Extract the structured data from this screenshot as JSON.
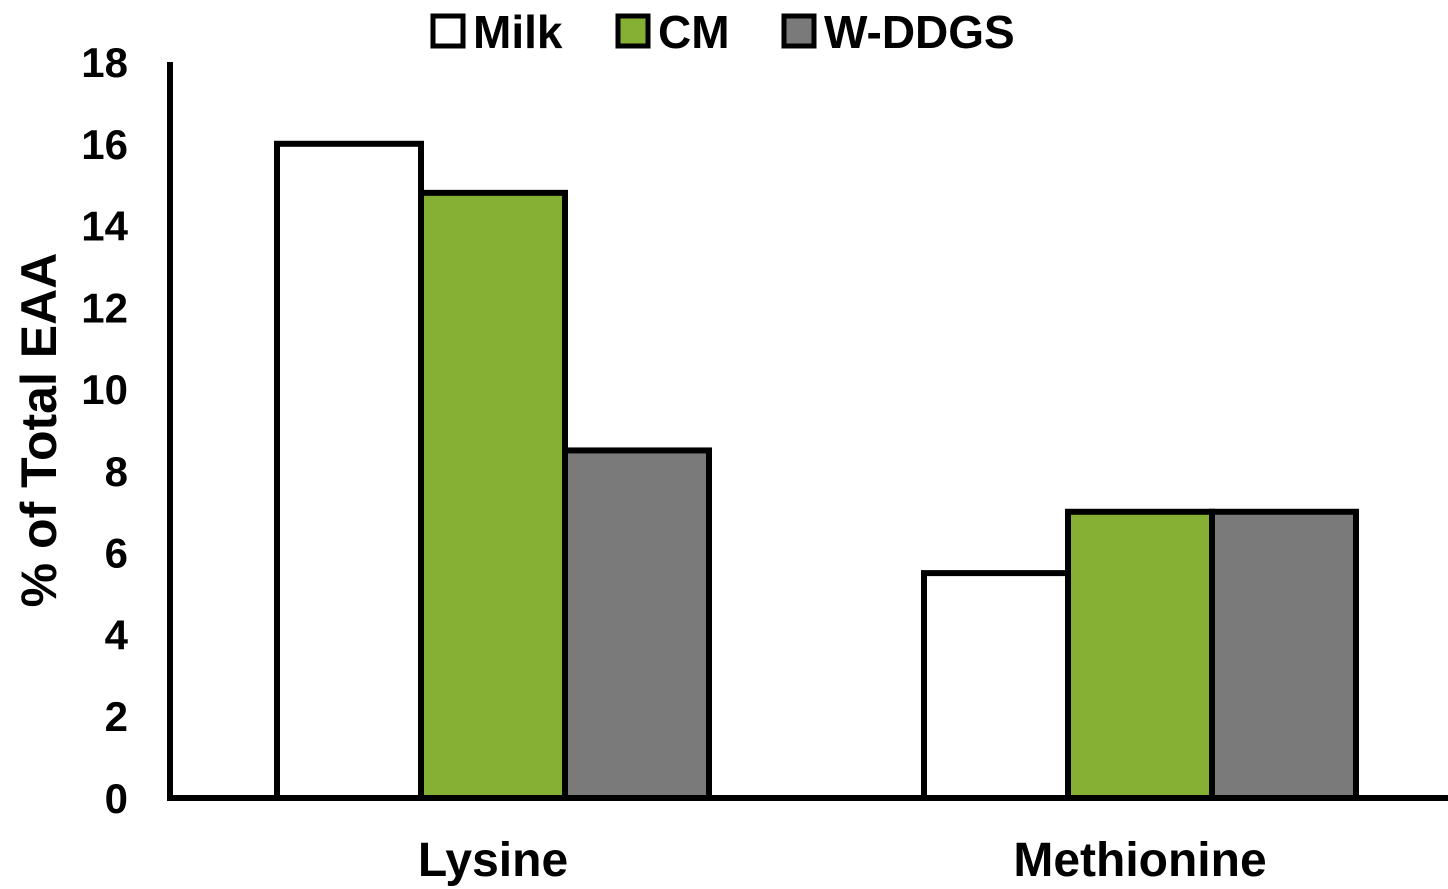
{
  "chart_data": {
    "type": "bar",
    "categories": [
      "Lysine",
      "Methionine"
    ],
    "series": [
      {
        "name": "Milk",
        "color": "#ffffff",
        "values": [
          16.0,
          5.5
        ]
      },
      {
        "name": "CM",
        "color": "#86b034",
        "values": [
          14.8,
          7.0
        ]
      },
      {
        "name": "W-DDGS",
        "color": "#7a7a7a",
        "values": [
          8.5,
          7.0
        ]
      }
    ],
    "title": "",
    "xlabel": "",
    "ylabel": "% of Total EAA",
    "ylim": [
      0,
      18
    ],
    "yticks": [
      0,
      2,
      4,
      6,
      8,
      10,
      12,
      14,
      16,
      18
    ],
    "legend_position": "top-center",
    "grid": false
  }
}
